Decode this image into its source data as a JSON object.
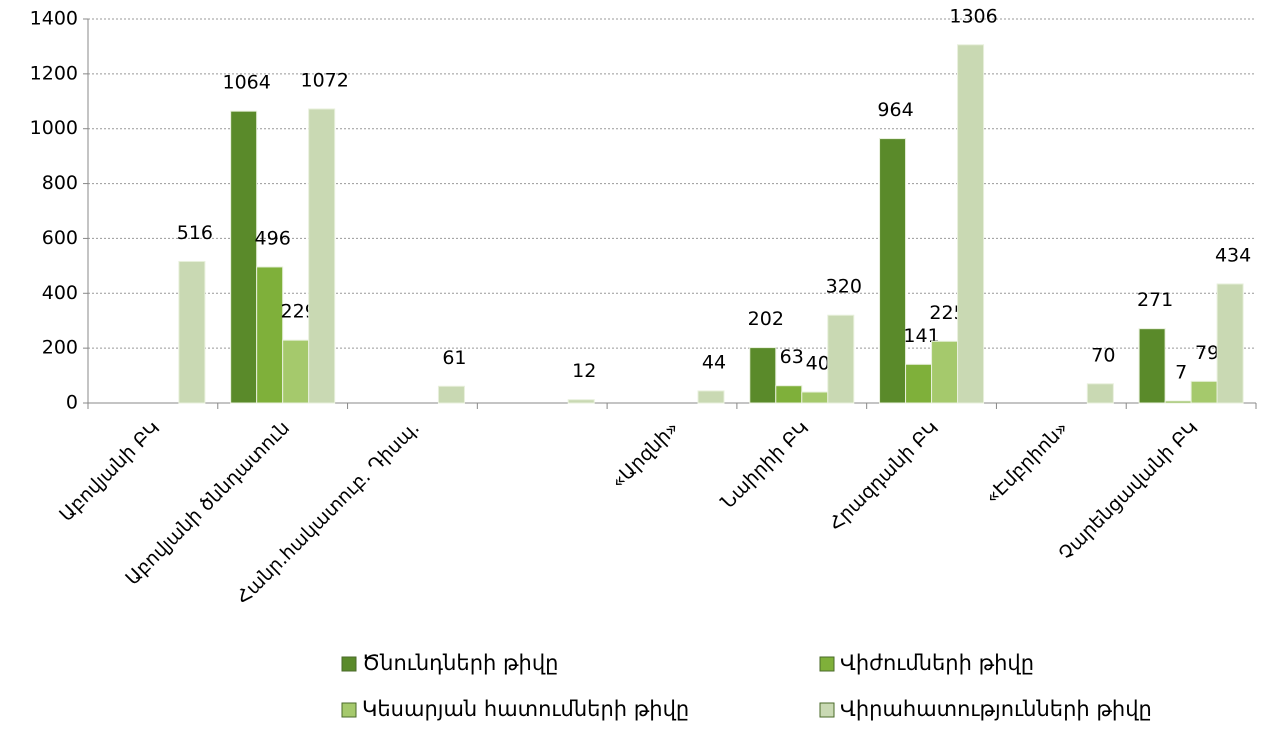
{
  "chart_data": {
    "type": "bar",
    "categories": [
      "Աբովյանի ԲԿ",
      "Աբովյանի ծննդատուն",
      "Հանր.հակատուբ. Դիսպ.",
      null,
      "«Արզնի»",
      "Նաիրիի ԲԿ",
      "Հրազդանի ԲԿ",
      "«Էմբրիոն»",
      "Չարենցավանի ԲԿ"
    ],
    "series": [
      {
        "name": "Ծնունդների թիվը",
        "color": "#5a8a2a",
        "values": [
          null,
          1064,
          null,
          null,
          null,
          202,
          964,
          null,
          271
        ]
      },
      {
        "name": "Վիժումների թիվը",
        "color": "#7fb03a",
        "values": [
          null,
          496,
          null,
          null,
          null,
          63,
          141,
          null,
          7
        ]
      },
      {
        "name": "Կեսարյան հատումների թիվը",
        "color": "#a5c96c",
        "values": [
          null,
          229,
          null,
          null,
          null,
          40,
          225,
          null,
          79
        ]
      },
      {
        "name": "Վիրահատությունների թիվը",
        "color": "#c9d9b3",
        "values": [
          516,
          1072,
          61,
          12,
          44,
          320,
          1306,
          70,
          434
        ]
      }
    ],
    "ylim": [
      0,
      1400
    ],
    "yticks": [
      0,
      200,
      400,
      600,
      800,
      1000,
      1200,
      1400
    ],
    "grid": true,
    "legend": "bottom"
  }
}
